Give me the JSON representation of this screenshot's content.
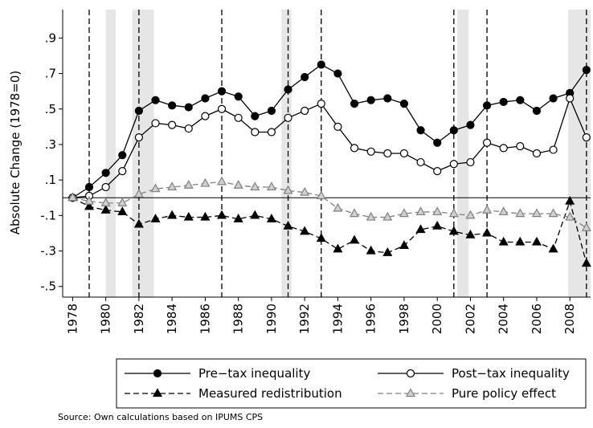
{
  "chart_data": {
    "type": "line",
    "y_label": "Absolute Change (1978=0)",
    "source": "Source: Own calculations based on IPUMS CPS",
    "x": [
      1978,
      1979,
      1980,
      1981,
      1982,
      1983,
      1984,
      1985,
      1986,
      1987,
      1988,
      1989,
      1990,
      1991,
      1992,
      1993,
      1994,
      1995,
      1996,
      1997,
      1998,
      1999,
      2000,
      2001,
      2002,
      2003,
      2004,
      2005,
      2006,
      2007,
      2008,
      2009
    ],
    "series": [
      {
        "name": "Pre−tax inequality",
        "color": "#000000",
        "marker": "circle",
        "filled": true,
        "dashed": false,
        "values": [
          0,
          0.06,
          0.14,
          0.24,
          0.49,
          0.55,
          0.52,
          0.51,
          0.56,
          0.6,
          0.57,
          0.46,
          0.49,
          0.61,
          0.68,
          0.75,
          0.7,
          0.53,
          0.55,
          0.56,
          0.53,
          0.38,
          0.31,
          0.38,
          0.41,
          0.52,
          0.54,
          0.55,
          0.49,
          0.56,
          0.59,
          0.72
        ]
      },
      {
        "name": "Post−tax inequality",
        "color": "#000000",
        "marker": "circle",
        "filled": false,
        "dashed": false,
        "values": [
          0,
          0.01,
          0.06,
          0.15,
          0.34,
          0.42,
          0.41,
          0.39,
          0.46,
          0.5,
          0.45,
          0.37,
          0.37,
          0.45,
          0.49,
          0.53,
          0.4,
          0.28,
          0.26,
          0.25,
          0.25,
          0.2,
          0.15,
          0.19,
          0.2,
          0.31,
          0.28,
          0.29,
          0.25,
          0.27,
          0.56,
          0.34
        ]
      },
      {
        "name": "Measured redistribution",
        "color": "#000000",
        "marker": "triangle",
        "filled": true,
        "dashed": true,
        "values": [
          0,
          -0.05,
          -0.07,
          -0.08,
          -0.15,
          -0.12,
          -0.1,
          -0.11,
          -0.11,
          -0.1,
          -0.12,
          -0.1,
          -0.12,
          -0.16,
          -0.19,
          -0.23,
          -0.29,
          -0.24,
          -0.3,
          -0.31,
          -0.27,
          -0.18,
          -0.16,
          -0.19,
          -0.21,
          -0.2,
          -0.25,
          -0.25,
          -0.25,
          -0.29,
          -0.02,
          -0.37
        ]
      },
      {
        "name": "Pure policy effect",
        "color": "#808080",
        "marker": "triangle",
        "filled": false,
        "dashed": true,
        "values": [
          0,
          -0.02,
          -0.03,
          -0.03,
          0.02,
          0.05,
          0.06,
          0.07,
          0.08,
          0.09,
          0.07,
          0.06,
          0.06,
          0.04,
          0.03,
          0.01,
          -0.06,
          -0.09,
          -0.11,
          -0.11,
          -0.09,
          -0.08,
          -0.08,
          -0.09,
          -0.1,
          -0.07,
          -0.08,
          -0.09,
          -0.09,
          -0.09,
          -0.11,
          -0.17
        ]
      }
    ],
    "xlim": [
      1977.4,
      2009.25
    ],
    "ylim": [
      -0.56,
      1.06
    ],
    "xticks": [
      1978,
      1980,
      1982,
      1984,
      1986,
      1988,
      1990,
      1992,
      1994,
      1996,
      1998,
      2000,
      2002,
      2004,
      2006,
      2008
    ],
    "yticks": [
      {
        "value": -0.5,
        "label": "-.5"
      },
      {
        "value": -0.3,
        "label": "-.3"
      },
      {
        "value": -0.1,
        "label": "-.1"
      },
      {
        "value": 0.1,
        "label": ".1"
      },
      {
        "value": 0.3,
        "label": ".3"
      },
      {
        "value": 0.5,
        "label": ".5"
      },
      {
        "value": 0.7,
        "label": ".7"
      },
      {
        "value": 0.9,
        "label": ".9"
      }
    ],
    "reference_line": 0,
    "event_lines": [
      1979,
      1982,
      1987,
      1991,
      1993,
      2001,
      2003,
      2009
    ],
    "shaded_periods": [
      [
        1980,
        1980.6
      ],
      [
        1981.6,
        1982.9
      ],
      [
        1990.6,
        1991.2
      ],
      [
        2001.2,
        2001.9
      ],
      [
        2007.9,
        2009.4
      ]
    ],
    "shade_color": "#e6e6e6",
    "legend": "bottom"
  }
}
